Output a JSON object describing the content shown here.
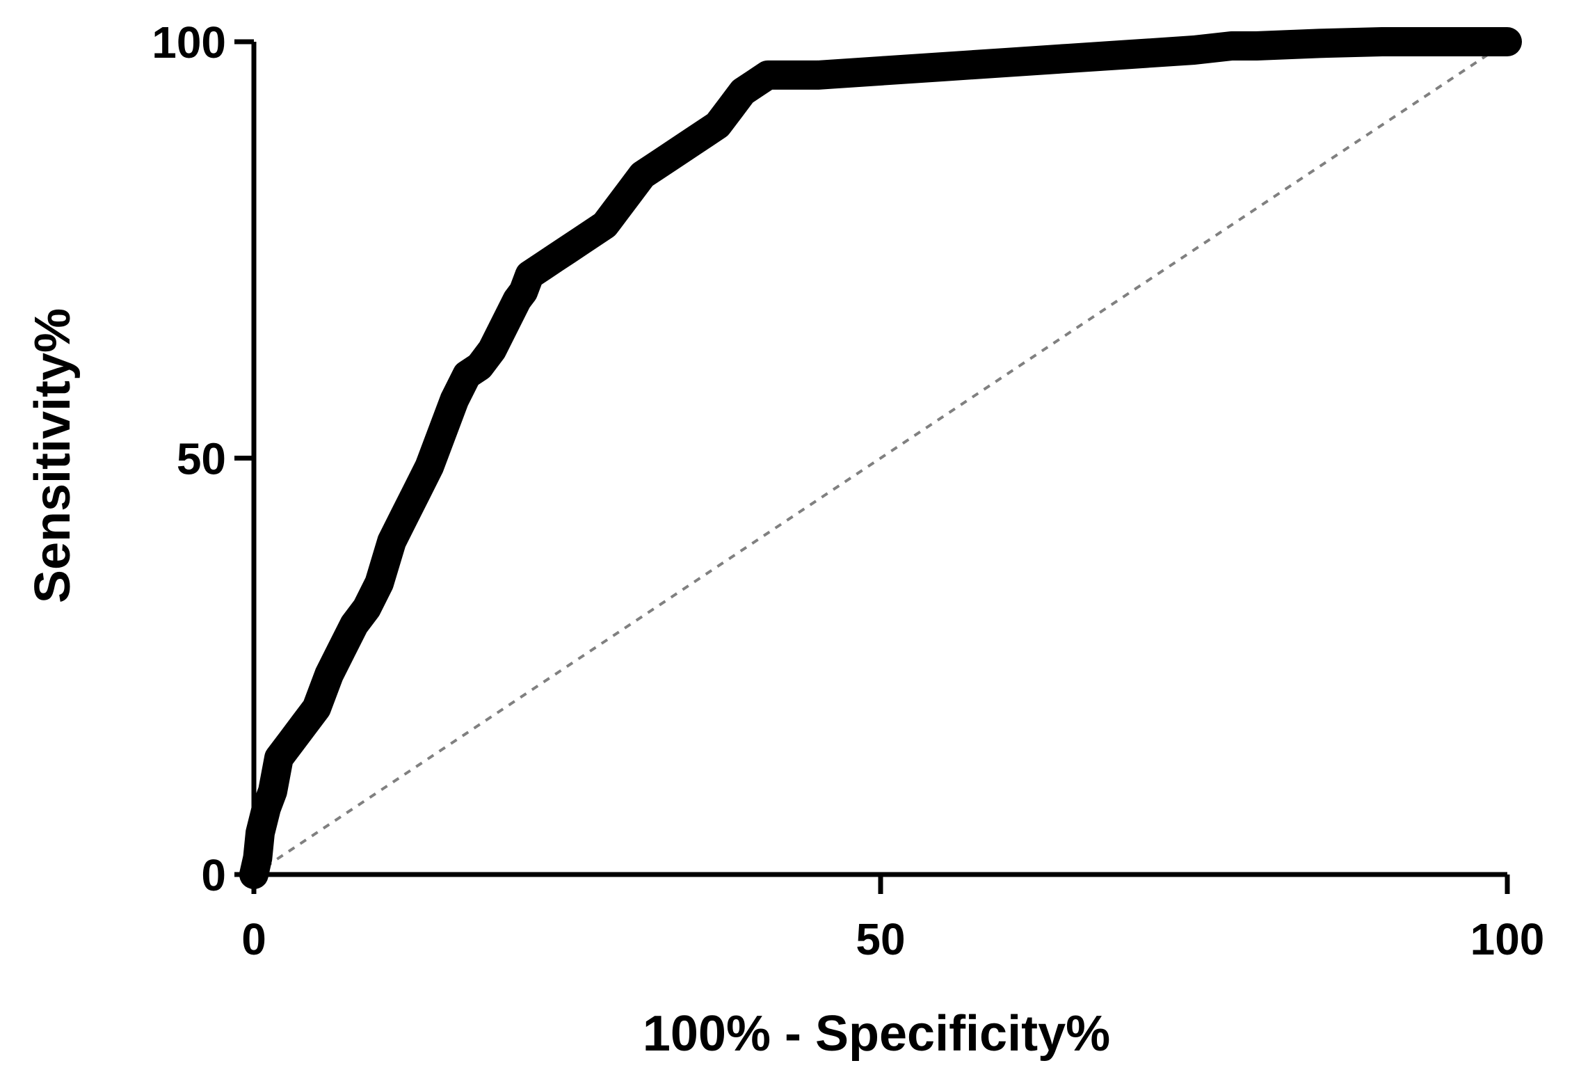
{
  "chart_data": {
    "type": "line",
    "xlabel": "100% - Specificity%",
    "ylabel": "Sensitivity%",
    "xlim": [
      0,
      100
    ],
    "ylim": [
      0,
      100
    ],
    "x_ticks": [
      0,
      50,
      100
    ],
    "y_ticks": [
      0,
      50,
      100
    ],
    "x_tick_labels": [
      "0",
      "50",
      "100"
    ],
    "y_tick_labels": [
      "0",
      "50",
      "100"
    ],
    "grid": false,
    "series": [
      {
        "style": "solid-thick",
        "color": "#000000",
        "x": [
          0,
          0.3,
          0.5,
          1.0,
          1.5,
          2,
          3,
          4,
          5,
          6,
          7,
          8,
          9,
          10,
          11,
          12,
          13,
          14,
          15,
          16,
          17,
          18,
          19,
          20,
          21,
          21.5,
          22,
          23,
          24,
          25,
          26,
          27,
          28,
          29,
          30,
          31,
          32,
          33,
          34,
          35,
          36,
          37,
          38,
          39,
          40,
          40.5,
          41,
          42,
          45,
          50,
          55,
          60,
          65,
          70,
          75,
          78,
          80,
          85,
          90,
          95,
          100
        ],
        "y": [
          0,
          2,
          5,
          8,
          10,
          14,
          16,
          18,
          20,
          24,
          27,
          30,
          32,
          35,
          40,
          43,
          46,
          49,
          53,
          57,
          60,
          61,
          63,
          66,
          69,
          70,
          72,
          73,
          74,
          75,
          76,
          77,
          78,
          80,
          82,
          84,
          85,
          86,
          87,
          88,
          89,
          90,
          92,
          94,
          95,
          95.5,
          96,
          96,
          96,
          96.5,
          97,
          97.5,
          98,
          98.5,
          99,
          99.5,
          99.5,
          99.8,
          100,
          100,
          100
        ]
      },
      {
        "style": "dotted-diagonal",
        "color": "#808080",
        "x": [
          0,
          100
        ],
        "y": [
          0,
          100
        ]
      }
    ]
  }
}
